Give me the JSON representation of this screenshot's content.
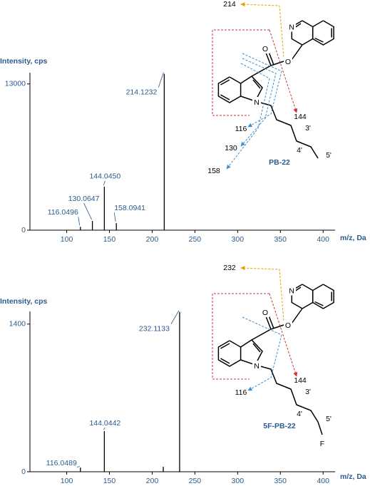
{
  "chart_data": [
    {
      "type": "stem",
      "y_label": "Intensity, cps",
      "x_label": "m/z, Da",
      "xlim": [
        57,
        414
      ],
      "xticks": [
        100,
        150,
        200,
        250,
        300,
        350,
        400
      ],
      "ylim": [
        0,
        14000
      ],
      "yticks": [
        0,
        13000
      ],
      "x": [
        116.0496,
        130.0647,
        144.045,
        158.0941,
        214.1232
      ],
      "x_labels": [
        "116.0496",
        "130.0647",
        "144.0450",
        "158.0941",
        "214.1232"
      ],
      "values": [
        300,
        820,
        3870,
        630,
        13900
      ],
      "color": "#000000",
      "structure": {
        "name": "PB-22",
        "fragments": [
          "214",
          "144",
          "116",
          "130",
          "158"
        ],
        "positions": [
          "3'",
          "4'",
          "5'"
        ],
        "atoms": [
          "N",
          "O",
          "O",
          "N"
        ]
      }
    },
    {
      "type": "stem",
      "y_label": "Intensity, cps",
      "x_label": "m/z, Da",
      "xlim": [
        57,
        414
      ],
      "xticks": [
        100,
        150,
        200,
        250,
        300,
        350,
        400
      ],
      "ylim": [
        0,
        1520
      ],
      "yticks": [
        0,
        1400
      ],
      "x": [
        116.0489,
        144.0442,
        213,
        232.1133
      ],
      "x_labels": [
        "116.0489",
        "144.0442",
        null,
        "232.1133"
      ],
      "values": [
        40,
        385,
        47,
        1515
      ],
      "color": "#000000",
      "structure": {
        "name": "5F-PB-22",
        "fragments": [
          "232",
          "144",
          "116"
        ],
        "positions": [
          "3'",
          "4'",
          "5'"
        ],
        "atoms": [
          "N",
          "O",
          "O",
          "N",
          "F"
        ]
      }
    }
  ]
}
